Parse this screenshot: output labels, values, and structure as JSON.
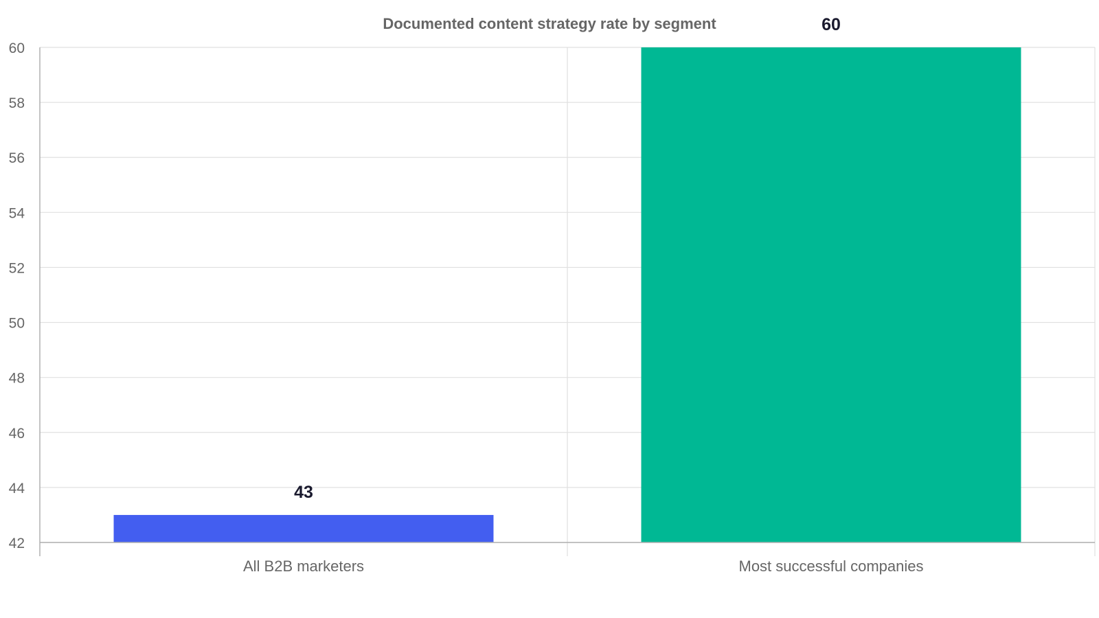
{
  "chart_data": {
    "type": "bar",
    "title": "Documented content strategy rate by segment",
    "categories": [
      "All B2B marketers",
      "Most successful companies"
    ],
    "values": [
      43,
      60
    ],
    "colors": [
      "#435ef0",
      "#00b894"
    ],
    "ylim": [
      42,
      60
    ],
    "yticks": [
      42,
      44,
      46,
      48,
      50,
      52,
      54,
      56,
      58,
      60
    ],
    "xlabel": "",
    "ylabel": "",
    "grid": true,
    "legend": "none"
  }
}
